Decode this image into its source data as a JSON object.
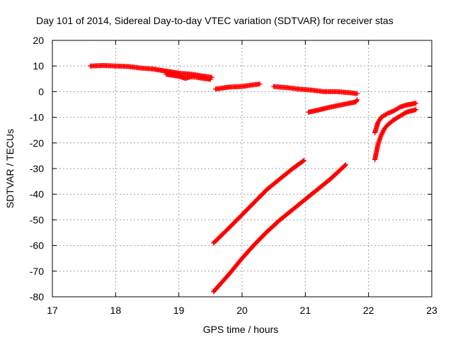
{
  "chart_data": {
    "type": "scatter",
    "title": "Day 101 of 2014, Sidereal Day-to-day VTEC variation (SDTVAR) for receiver stas",
    "xlabel": "GPS time / hours",
    "ylabel": "SDTVAR / TECUs",
    "xlim": [
      17,
      23
    ],
    "ylim": [
      -80,
      20
    ],
    "xticks": [
      "17",
      "18",
      "19",
      "20",
      "21",
      "22",
      "23"
    ],
    "yticks": [
      "20",
      "10",
      "0",
      "-10",
      "-20",
      "-30",
      "-40",
      "-50",
      "-60",
      "-70",
      "-80"
    ],
    "grid": true,
    "marker": "+",
    "color": "#ff0000",
    "series": [
      {
        "x": [
          17.6,
          17.8,
          18.0,
          18.2,
          18.4,
          18.6,
          18.8,
          19.0,
          19.2,
          19.4,
          19.52
        ],
        "y": [
          10.0,
          10.2,
          10.0,
          9.8,
          9.2,
          8.8,
          8.0,
          7.2,
          6.8,
          6.0,
          5.6
        ]
      },
      {
        "x": [
          18.8,
          19.0,
          19.1,
          19.2,
          19.3,
          19.5
        ],
        "y": [
          6.8,
          6.0,
          5.2,
          5.8,
          5.5,
          4.8
        ]
      },
      {
        "x": [
          19.58,
          19.8,
          20.0,
          20.1,
          20.28
        ],
        "y": [
          1.0,
          1.8,
          2.0,
          2.4,
          3.0
        ]
      },
      {
        "x": [
          20.5,
          20.7,
          20.9,
          21.1,
          21.3,
          21.5,
          21.7,
          21.82
        ],
        "y": [
          2.0,
          1.6,
          1.0,
          0.6,
          0.0,
          0.0,
          -0.4,
          -0.8
        ]
      },
      {
        "x": [
          21.05,
          21.2,
          21.4,
          21.6,
          21.8,
          21.82
        ],
        "y": [
          -8.0,
          -7.2,
          -6.0,
          -5.0,
          -4.0,
          -3.2
        ]
      },
      {
        "x": [
          19.55,
          19.8,
          20.0,
          20.2,
          20.4,
          20.6,
          20.8,
          20.98
        ],
        "y": [
          -59.0,
          -53.0,
          -48.0,
          -43.0,
          -38.0,
          -34.0,
          -30.0,
          -26.8
        ]
      },
      {
        "x": [
          19.55,
          19.8,
          20.0,
          20.2,
          20.4,
          20.6,
          20.8,
          21.0,
          21.2,
          21.4,
          21.64
        ],
        "y": [
          -78.0,
          -71.0,
          -65.0,
          -59.5,
          -54.5,
          -50.0,
          -46.0,
          -42.0,
          -38.0,
          -34.0,
          -28.5
        ]
      },
      {
        "x": [
          22.1,
          22.15,
          22.2,
          22.3,
          22.4,
          22.5,
          22.6,
          22.75
        ],
        "y": [
          -16.0,
          -12.0,
          -10.0,
          -8.5,
          -7.5,
          -6.0,
          -5.2,
          -4.5
        ]
      },
      {
        "x": [
          22.1,
          22.15,
          22.2,
          22.25,
          22.3,
          22.4,
          22.5,
          22.6,
          22.75
        ],
        "y": [
          -26.5,
          -20.5,
          -17.0,
          -14.5,
          -13.0,
          -11.0,
          -9.5,
          -8.0,
          -7.0
        ]
      }
    ]
  }
}
